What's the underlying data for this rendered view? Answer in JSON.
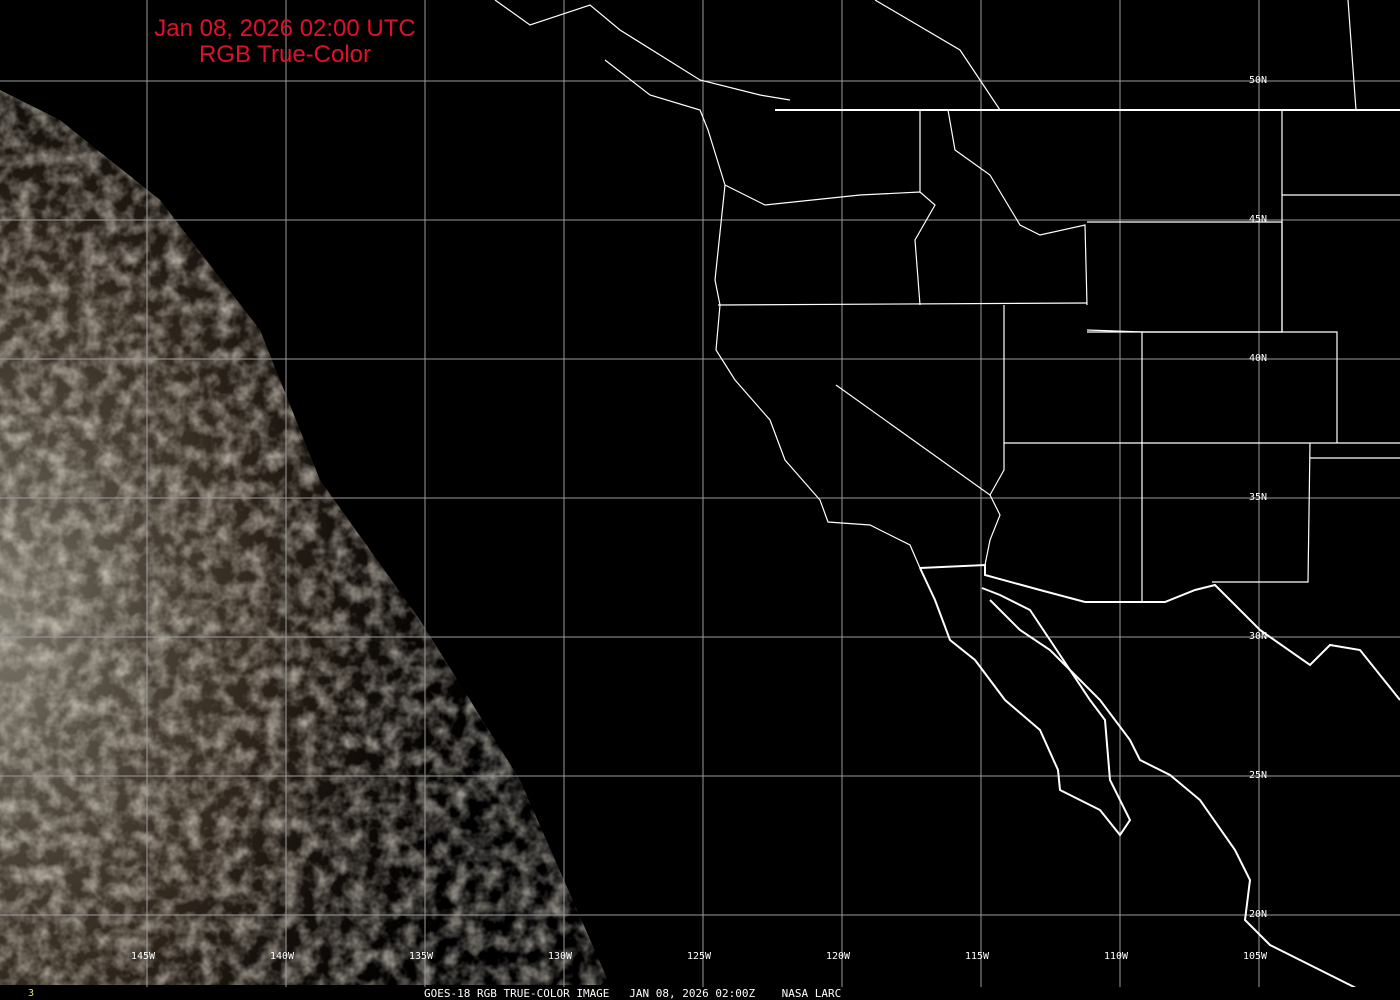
{
  "title": {
    "line1": "Jan 08, 2026 02:00 UTC",
    "line2": "RGB True-Color",
    "color": "#e0102a"
  },
  "longitude_labels": [
    "145W",
    "140W",
    "135W",
    "130W",
    "125W",
    "120W",
    "115W",
    "110W",
    "105W"
  ],
  "latitude_labels": [
    "50N",
    "45N",
    "40N",
    "35N",
    "30N",
    "25N",
    "20N"
  ],
  "footer": {
    "frame": "3",
    "caption": "GOES-18 RGB TRUE-COLOR IMAGE   JAN 08, 2026 02:00Z    NASA LARC"
  },
  "colors": {
    "grid": "#9a9a9a",
    "borders": "#ffffff",
    "background": "#000000"
  }
}
